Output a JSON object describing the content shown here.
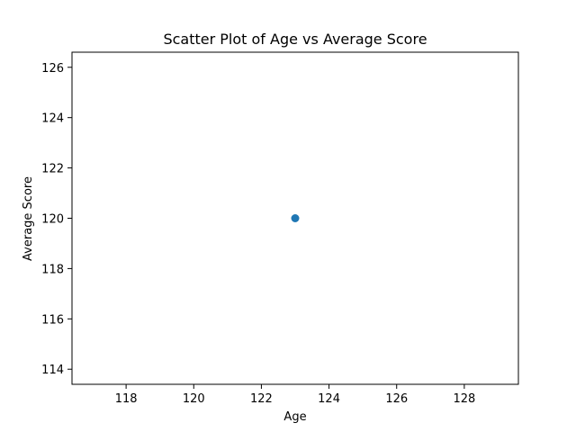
{
  "chart_data": {
    "type": "scatter",
    "title": "Scatter Plot of Age vs Average Score",
    "xlabel": "Age",
    "ylabel": "Average Score",
    "xlim": [
      116.4,
      129.6
    ],
    "ylim": [
      113.4,
      126.6
    ],
    "xticks": [
      118,
      120,
      122,
      124,
      126,
      128
    ],
    "yticks": [
      114,
      116,
      118,
      120,
      122,
      124,
      126
    ],
    "grid": false,
    "series": [
      {
        "color": "#1f77b4",
        "points": [
          {
            "x": 123,
            "y": 120
          }
        ]
      }
    ]
  }
}
